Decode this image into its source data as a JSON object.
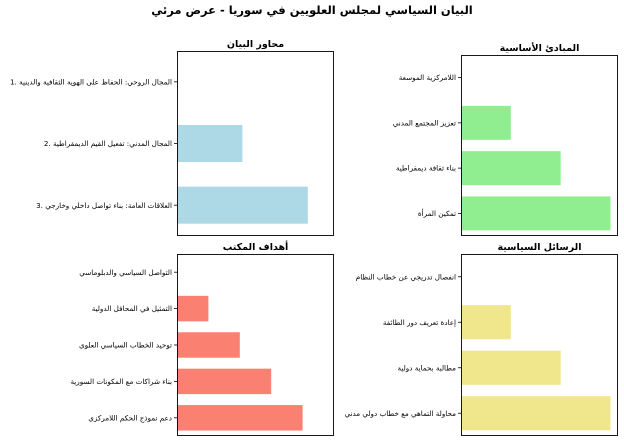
{
  "title": "البيان السياسي لمجلس العلويين في سوريا - عرض مرئي",
  "chart_data": [
    {
      "type": "bar",
      "orientation": "horizontal",
      "title": "محاور البيان",
      "categories": [
        "1. المجال الروحي: الحفاظ على الهوية الثقافية والدينية",
        "2. المجال المدني: تفعيل القيم الديمقراطية",
        "3. العلاقات العامة: بناء تواصل داخلي وخارجي"
      ],
      "values": [
        0,
        1,
        2
      ],
      "xlim": [
        0,
        2.4
      ],
      "color": "#add8e6"
    },
    {
      "type": "bar",
      "orientation": "horizontal",
      "title": "المبادئ الأساسية",
      "categories": [
        "اللامركزية الموسعة",
        "تعزيز المجتمع المدني",
        "بناء ثقافة ديمقراطية",
        "تمكين المرأة"
      ],
      "values": [
        0,
        1,
        2,
        3
      ],
      "xlim": [
        0,
        3.15
      ],
      "color": "#90ee90"
    },
    {
      "type": "bar",
      "orientation": "horizontal",
      "title": "أهداف المكتب",
      "categories": [
        "التواصل السياسي والدبلوماسي",
        "التمثيل في المحافل الدولية",
        "توحيد الخطاب السياسي العلوي",
        "بناء شراكات مع المكونات السورية",
        "دعم نموذج الحكم اللامركزي"
      ],
      "values": [
        0,
        1,
        2,
        3,
        4
      ],
      "xlim": [
        0,
        5.0
      ],
      "color": "#fa8072"
    },
    {
      "type": "bar",
      "orientation": "horizontal",
      "title": "الرسائل السياسية",
      "categories": [
        "انفصال تدريجي عن خطاب النظام",
        "إعادة تعريف دور الطائفة",
        "مطالبة بحماية دولية",
        "محاولة التماهي مع خطاب دولي مدني"
      ],
      "values": [
        0,
        1,
        2,
        3
      ],
      "xlim": [
        0,
        3.15
      ],
      "color": "#f0e68c"
    }
  ]
}
